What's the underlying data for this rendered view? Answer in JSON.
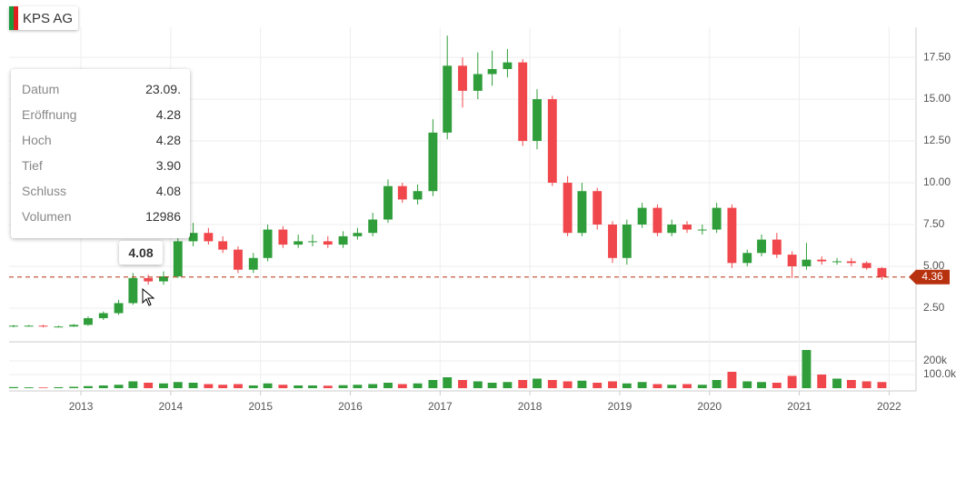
{
  "header": {
    "title": "KPS AG"
  },
  "chart_data": {
    "type": "candlestick",
    "x": [
      2012.25,
      2012.42,
      2012.58,
      2012.75,
      2012.92,
      2013.08,
      2013.25,
      2013.42,
      2013.58,
      2013.75,
      2013.92,
      2014.08,
      2014.25,
      2014.42,
      2014.58,
      2014.75,
      2014.92,
      2015.08,
      2015.25,
      2015.42,
      2015.58,
      2015.75,
      2015.92,
      2016.08,
      2016.25,
      2016.42,
      2016.58,
      2016.75,
      2016.92,
      2017.08,
      2017.25,
      2017.42,
      2017.58,
      2017.75,
      2017.92,
      2018.08,
      2018.25,
      2018.42,
      2018.58,
      2018.75,
      2018.92,
      2019.08,
      2019.25,
      2019.42,
      2019.58,
      2019.75,
      2019.92,
      2020.08,
      2020.25,
      2020.42,
      2020.58,
      2020.75,
      2020.92,
      2021.08,
      2021.25,
      2021.42,
      2021.58,
      2021.75,
      2021.92
    ],
    "open": [
      1.4,
      1.45,
      1.45,
      1.4,
      1.4,
      1.5,
      1.9,
      2.2,
      2.8,
      4.3,
      4.1,
      4.4,
      6.5,
      7.0,
      6.5,
      6.0,
      4.8,
      5.5,
      7.2,
      6.3,
      6.5,
      6.5,
      6.3,
      6.8,
      7.0,
      7.8,
      9.8,
      9.0,
      9.5,
      13.0,
      17.0,
      15.5,
      16.5,
      16.8,
      17.2,
      12.5,
      15.0,
      10.0,
      7.0,
      9.5,
      7.5,
      5.5,
      7.5,
      8.5,
      7.0,
      7.5,
      7.2,
      7.2,
      8.5,
      5.2,
      5.8,
      6.6,
      5.7,
      5.0,
      5.4,
      5.3,
      5.3,
      5.2,
      4.9
    ],
    "high": [
      1.5,
      1.5,
      1.5,
      1.45,
      1.55,
      2.0,
      2.3,
      3.0,
      4.6,
      4.5,
      4.7,
      6.9,
      7.6,
      7.3,
      6.8,
      6.2,
      5.8,
      7.5,
      7.4,
      6.9,
      6.9,
      6.8,
      7.1,
      7.3,
      8.2,
      10.2,
      10.0,
      9.9,
      13.8,
      18.8,
      17.5,
      17.8,
      17.9,
      18.0,
      17.4,
      15.6,
      15.2,
      10.4,
      10.0,
      9.7,
      7.7,
      7.8,
      8.8,
      8.7,
      7.8,
      7.7,
      7.5,
      8.8,
      8.7,
      6.0,
      6.9,
      7.0,
      5.9,
      6.4,
      5.6,
      5.5,
      5.5,
      5.3,
      4.95
    ],
    "low": [
      1.35,
      1.4,
      1.35,
      1.35,
      1.38,
      1.45,
      1.8,
      2.1,
      2.7,
      3.9,
      3.9,
      4.3,
      6.2,
      6.3,
      5.8,
      4.6,
      4.6,
      5.3,
      6.1,
      6.1,
      6.2,
      6.1,
      6.1,
      6.6,
      6.8,
      7.6,
      8.8,
      8.7,
      9.2,
      12.6,
      14.5,
      15.0,
      15.8,
      16.3,
      12.2,
      12.0,
      9.8,
      6.8,
      6.8,
      7.2,
      5.2,
      5.1,
      7.3,
      6.8,
      6.8,
      7.0,
      6.9,
      7.0,
      4.9,
      5.0,
      5.6,
      5.5,
      4.3,
      4.8,
      5.1,
      5.1,
      5.0,
      4.8,
      4.2
    ],
    "close": [
      1.45,
      1.45,
      1.4,
      1.4,
      1.5,
      1.9,
      2.2,
      2.8,
      4.3,
      4.1,
      4.4,
      6.5,
      7.0,
      6.5,
      6.0,
      4.8,
      5.5,
      7.2,
      6.3,
      6.5,
      6.5,
      6.3,
      6.8,
      7.0,
      7.8,
      9.8,
      9.0,
      9.5,
      13.0,
      17.0,
      15.5,
      16.5,
      16.8,
      17.2,
      12.5,
      15.0,
      10.0,
      7.0,
      9.5,
      7.5,
      5.5,
      7.5,
      8.5,
      7.0,
      7.5,
      7.2,
      7.2,
      8.5,
      5.2,
      5.8,
      6.6,
      5.7,
      5.0,
      5.4,
      5.3,
      5.3,
      5.2,
      4.9,
      4.36
    ],
    "volume": [
      8000,
      6000,
      5000,
      7000,
      10000,
      15000,
      20000,
      25000,
      50000,
      40000,
      35000,
      45000,
      40000,
      30000,
      25000,
      30000,
      20000,
      35000,
      25000,
      20000,
      20000,
      18000,
      22000,
      25000,
      30000,
      40000,
      30000,
      35000,
      60000,
      80000,
      60000,
      50000,
      40000,
      45000,
      60000,
      70000,
      60000,
      50000,
      55000,
      40000,
      50000,
      35000,
      45000,
      30000,
      25000,
      30000,
      25000,
      60000,
      120000,
      50000,
      45000,
      40000,
      90000,
      280000,
      100000,
      70000,
      60000,
      50000,
      45000
    ],
    "xlim": [
      2012.2,
      2022.3
    ],
    "xticks": [
      2013,
      2014,
      2015,
      2016,
      2017,
      2018,
      2019,
      2020,
      2021,
      2022
    ],
    "ylim": [
      0.54,
      19.3
    ],
    "yticks": [
      {
        "value": 2.5,
        "label": "2.50"
      },
      {
        "value": 5,
        "label": "5.00"
      },
      {
        "value": 7.5,
        "label": "7.50"
      },
      {
        "value": 10,
        "label": "10.00"
      },
      {
        "value": 12.5,
        "label": "12.50"
      },
      {
        "value": 15,
        "label": "15.00"
      },
      {
        "value": 17.5,
        "label": "17.50"
      }
    ],
    "volume_ylim": [
      -20000,
      333000
    ],
    "volume_yticks": [
      {
        "value": 100000,
        "label": "100.0k"
      },
      {
        "value": 200000,
        "label": "200k"
      }
    ],
    "last_price": {
      "value": 4.36,
      "label": "4.36"
    },
    "up_color": "#2f9e3a",
    "down_color": "#f0474c",
    "last_color": "#b8310f",
    "grid": true
  },
  "tooltip": {
    "rows": [
      [
        "Datum",
        "23.09."
      ],
      [
        "Eröffnung",
        "4.28"
      ],
      [
        "Hoch",
        "4.28"
      ],
      [
        "Tief",
        "3.90"
      ],
      [
        "Schluss",
        "4.08"
      ],
      [
        "Volumen",
        "12986"
      ]
    ],
    "callout": "4.08"
  }
}
